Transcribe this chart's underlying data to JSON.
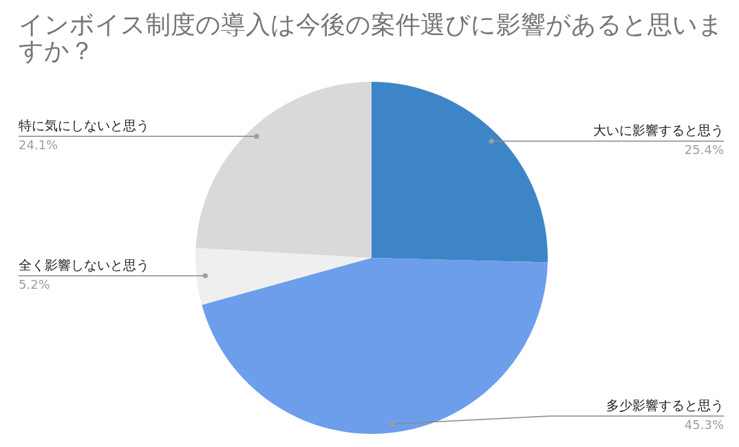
{
  "chart_data": {
    "type": "pie",
    "title": "インボイス制度の導入は今後の案件選びに影響があると思いますか？",
    "categories": [
      "大いに影響すると思う",
      "多少影響すると思う",
      "全く影響しないと思う",
      "特に気にしないと思う"
    ],
    "values": [
      25.4,
      45.3,
      5.2,
      24.1
    ],
    "colors": [
      "#3d85c6",
      "#6d9eeb",
      "#efefef",
      "#d9d9d9"
    ],
    "value_labels": [
      "25.4%",
      "45.3%",
      "5.2%",
      "24.1%"
    ]
  }
}
